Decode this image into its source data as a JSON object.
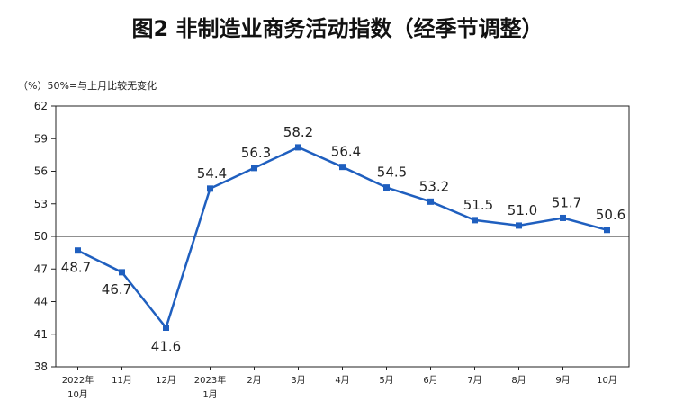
{
  "title": "图2  非制造业商务活动指数（经季节调整）",
  "note": "（%）50%=与上月比较无变化",
  "colors": {
    "line": "#1f5fbf",
    "axis": "#222222"
  },
  "chart_data": {
    "type": "line",
    "title": "图2  非制造业商务活动指数（经季节调整）",
    "ylabel": "（%）",
    "ylim": [
      38,
      62
    ],
    "yticks": [
      38,
      41,
      44,
      47,
      50,
      53,
      56,
      59,
      62
    ],
    "baseline": 50,
    "grid": false,
    "categories": [
      [
        "2022年",
        "10月"
      ],
      [
        "11月"
      ],
      [
        "12月"
      ],
      [
        "2023年",
        "1月"
      ],
      [
        "2月"
      ],
      [
        "3月"
      ],
      [
        "4月"
      ],
      [
        "5月"
      ],
      [
        "6月"
      ],
      [
        "7月"
      ],
      [
        "8月"
      ],
      [
        "9月"
      ],
      [
        "10月"
      ]
    ],
    "series": [
      {
        "values": [
          48.7,
          46.7,
          41.6,
          54.4,
          56.3,
          58.2,
          56.4,
          54.5,
          53.2,
          51.5,
          51.0,
          51.7,
          50.6
        ]
      }
    ],
    "data_labels": [
      "48.7",
      "46.7",
      "41.6",
      "54.4",
      "56.3",
      "58.2",
      "56.4",
      "54.5",
      "53.2",
      "51.5",
      "51.0",
      "51.7",
      "50.6"
    ]
  }
}
